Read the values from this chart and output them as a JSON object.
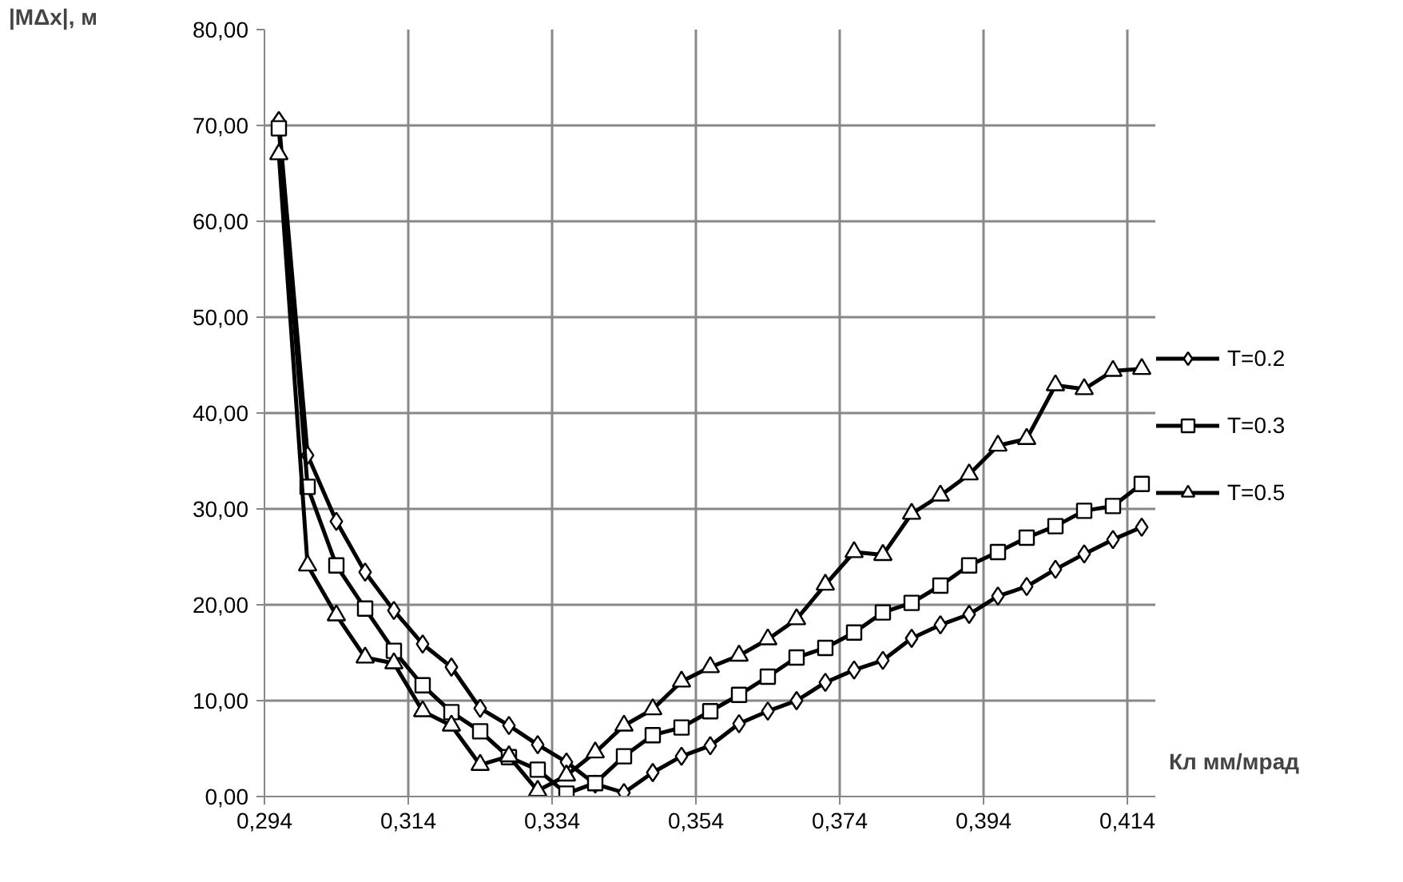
{
  "chart_data": {
    "type": "line",
    "xlabel": "Кл мм/мрад",
    "ylabel": "|MΔx|, м",
    "x": [
      0.296,
      0.3,
      0.304,
      0.308,
      0.312,
      0.316,
      0.32,
      0.324,
      0.328,
      0.332,
      0.336,
      0.34,
      0.344,
      0.348,
      0.352,
      0.356,
      0.36,
      0.364,
      0.368,
      0.372,
      0.376,
      0.38,
      0.384,
      0.388,
      0.392,
      0.396,
      0.4,
      0.404,
      0.408,
      0.412,
      0.416
    ],
    "series": [
      {
        "name": "T=0.2",
        "color": "#000000",
        "marker": "diamond",
        "values": [
          70.5,
          35.6,
          28.7,
          23.4,
          19.4,
          15.9,
          13.5,
          9.2,
          7.4,
          5.4,
          3.6,
          1.3,
          0.4,
          2.5,
          4.2,
          5.3,
          7.6,
          8.9,
          10.0,
          11.9,
          13.2,
          14.2,
          16.5,
          17.9,
          19.0,
          20.9,
          21.9,
          23.7,
          25.3,
          26.8,
          28.1
        ]
      },
      {
        "name": "T=0.3",
        "color": "#000000",
        "marker": "square",
        "values": [
          69.7,
          32.3,
          24.1,
          19.6,
          15.2,
          11.6,
          8.8,
          6.8,
          4.1,
          2.8,
          0.3,
          1.4,
          4.2,
          6.4,
          7.2,
          8.9,
          10.6,
          12.5,
          14.5,
          15.5,
          17.1,
          19.2,
          20.2,
          22.0,
          24.1,
          25.5,
          27.0,
          28.2,
          29.8,
          30.3,
          32.6
        ]
      },
      {
        "name": "T=0.5",
        "color": "#000000",
        "marker": "triangle",
        "values": [
          67.0,
          24.1,
          18.9,
          14.5,
          13.9,
          8.9,
          7.4,
          3.3,
          4.2,
          0.6,
          2.2,
          4.6,
          7.4,
          9.1,
          12.0,
          13.5,
          14.7,
          16.4,
          18.5,
          22.1,
          25.5,
          25.2,
          29.5,
          31.4,
          33.6,
          36.6,
          37.3,
          42.9,
          42.5,
          44.4,
          44.6
        ]
      }
    ],
    "xlim": [
      0.294,
      0.418
    ],
    "xticks": [
      {
        "value": 0.294,
        "label": "0,294"
      },
      {
        "value": 0.314,
        "label": "0,314"
      },
      {
        "value": 0.334,
        "label": "0,334"
      },
      {
        "value": 0.354,
        "label": "0,354"
      },
      {
        "value": 0.374,
        "label": "0,374"
      },
      {
        "value": 0.394,
        "label": "0,394"
      },
      {
        "value": 0.414,
        "label": "0,414"
      }
    ],
    "ylim": [
      0,
      80
    ],
    "yticks": [
      {
        "value": 0,
        "label": "0,00"
      },
      {
        "value": 10,
        "label": "10,00"
      },
      {
        "value": 20,
        "label": "20,00"
      },
      {
        "value": 30,
        "label": "30,00"
      },
      {
        "value": 40,
        "label": "40,00"
      },
      {
        "value": 50,
        "label": "50,00"
      },
      {
        "value": 60,
        "label": "60,00"
      },
      {
        "value": 70,
        "label": "70,00"
      },
      {
        "value": 80,
        "label": "80,00"
      }
    ],
    "grid": true,
    "legend": "right",
    "line_style": "solid"
  }
}
